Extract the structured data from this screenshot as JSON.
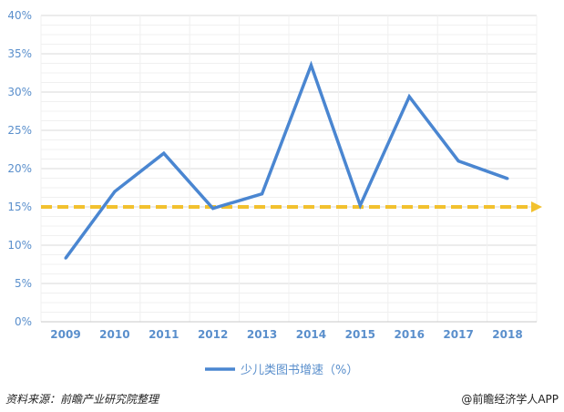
{
  "chart_data": {
    "type": "line",
    "categories": [
      "2009",
      "2010",
      "2011",
      "2012",
      "2013",
      "2014",
      "2015",
      "2016",
      "2017",
      "2018"
    ],
    "series": [
      {
        "name": "少儿类图书增速（%）",
        "values": [
          8.3,
          17,
          22,
          14.8,
          16.7,
          33.5,
          15.2,
          29.4,
          21,
          18.7
        ],
        "color": "#4a86d1"
      }
    ],
    "reference_line": {
      "value": 15,
      "color": "#f2c12e",
      "style": "dashed-arrow"
    },
    "y_ticks": [
      0,
      5,
      10,
      15,
      20,
      25,
      30,
      35,
      40
    ],
    "y_tick_labels": [
      "0%",
      "5%",
      "10%",
      "15%",
      "20%",
      "25%",
      "30%",
      "35%",
      "40%"
    ],
    "ylim": [
      0,
      40
    ],
    "grid": true,
    "legend": "bottom-center",
    "tick_color": "#5a8fcc"
  },
  "footer": {
    "source": "资料来源：前瞻产业研究院整理",
    "credit": "@前瞻经济学人APP"
  }
}
